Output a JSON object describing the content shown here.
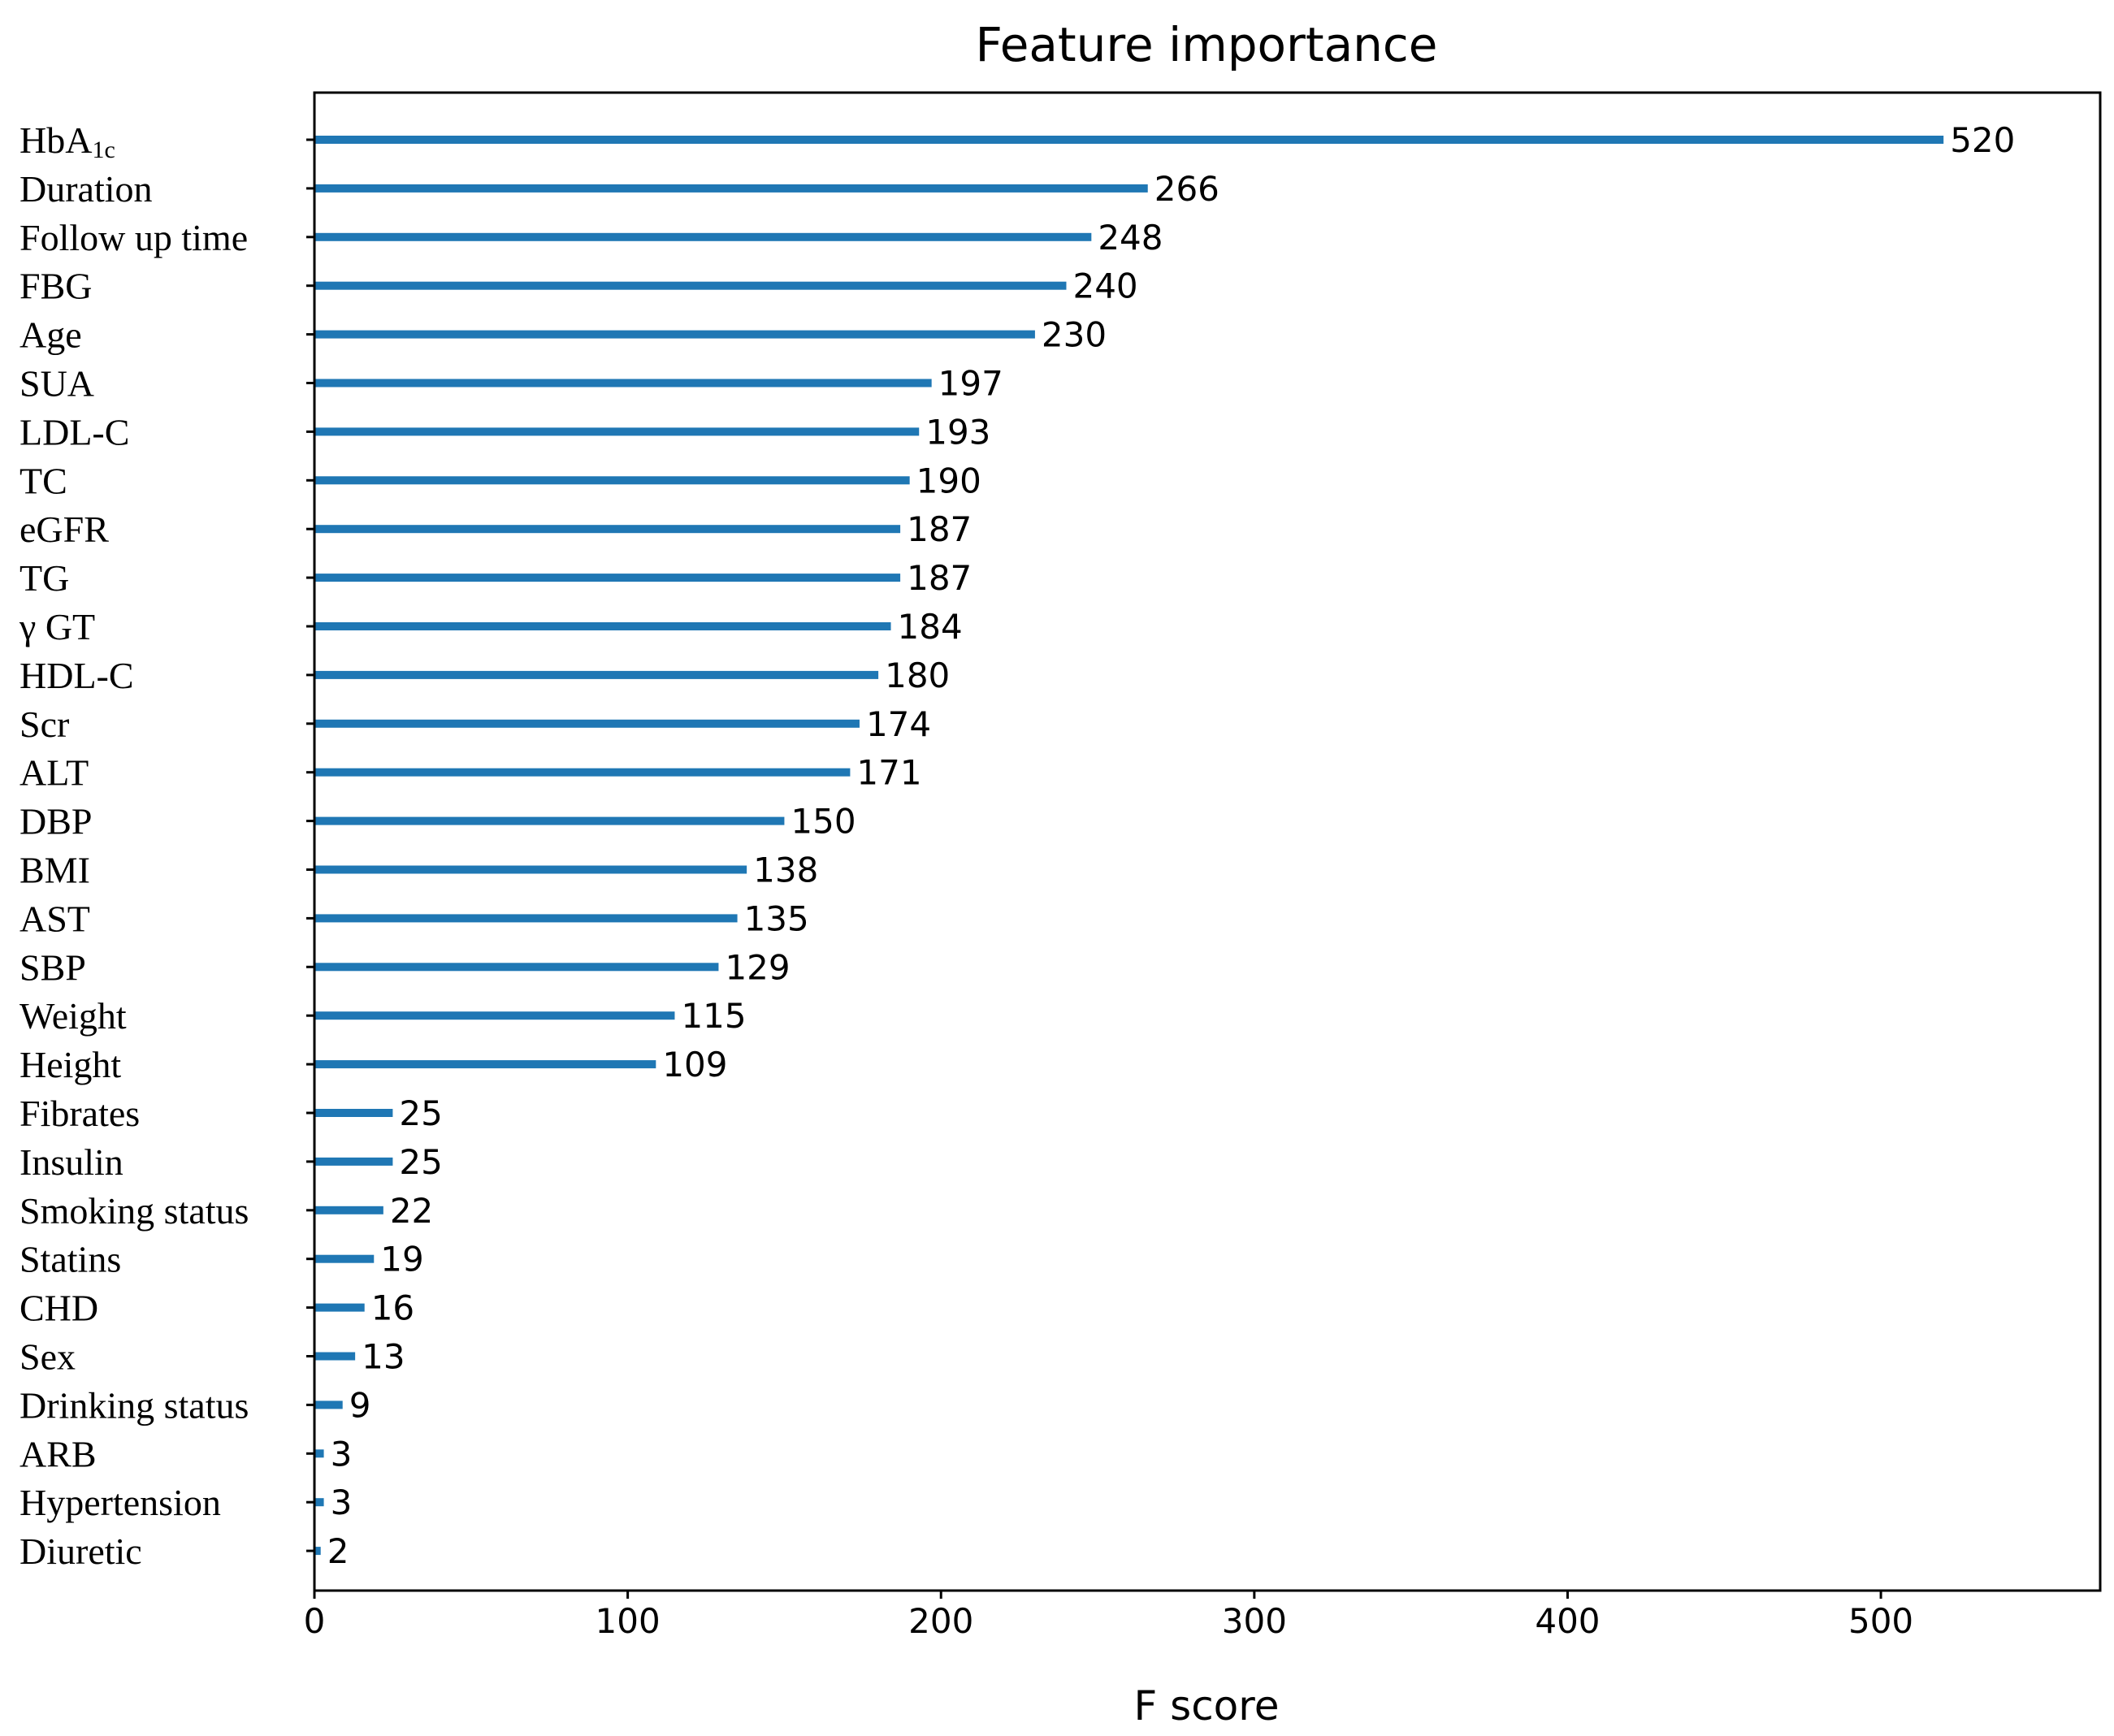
{
  "chart_data": {
    "type": "bar",
    "orientation": "horizontal",
    "title": "Feature importance",
    "xlabel": "F score",
    "ylabel": "",
    "xlim": [
      0,
      570
    ],
    "xticks": [
      0,
      100,
      200,
      300,
      400,
      500
    ],
    "grid": false,
    "bar_color": "#1f77b4",
    "categories": [
      "HbA1c",
      "Duration",
      "Follow up time",
      "FBG",
      "Age",
      "SUA",
      "LDL-C",
      "TC",
      "eGFR",
      "TG",
      "γ GT",
      "HDL-C",
      "Scr",
      "ALT",
      "DBP",
      "BMI",
      "AST",
      "SBP",
      "Weight",
      "Height",
      "Fibrates",
      "Insulin",
      "Smoking status",
      "Statins",
      "CHD",
      "Sex",
      "Drinking status",
      "ARB",
      "Hypertension",
      "Diuretic"
    ],
    "values": [
      520,
      266,
      248,
      240,
      230,
      197,
      193,
      190,
      187,
      187,
      184,
      180,
      174,
      171,
      150,
      138,
      135,
      129,
      115,
      109,
      25,
      25,
      22,
      19,
      16,
      13,
      9,
      3,
      3,
      2
    ]
  }
}
